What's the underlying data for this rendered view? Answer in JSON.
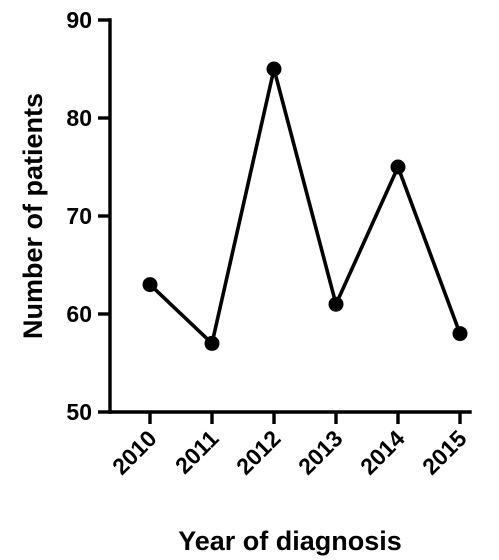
{
  "chart_data": {
    "type": "line",
    "title": "",
    "xlabel": "Year of diagnosis",
    "ylabel": "Number of patients",
    "categories": [
      "2010",
      "2011",
      "2012",
      "2013",
      "2014",
      "2015"
    ],
    "series": [
      {
        "values": [
          63,
          57,
          85,
          61,
          75,
          58
        ]
      }
    ],
    "ylim": [
      50,
      90
    ],
    "yticks": [
      "50",
      "60",
      "70",
      "80",
      "90"
    ],
    "grid": false,
    "legend": "none",
    "line_color": "#000000",
    "marker_color": "#000000"
  }
}
